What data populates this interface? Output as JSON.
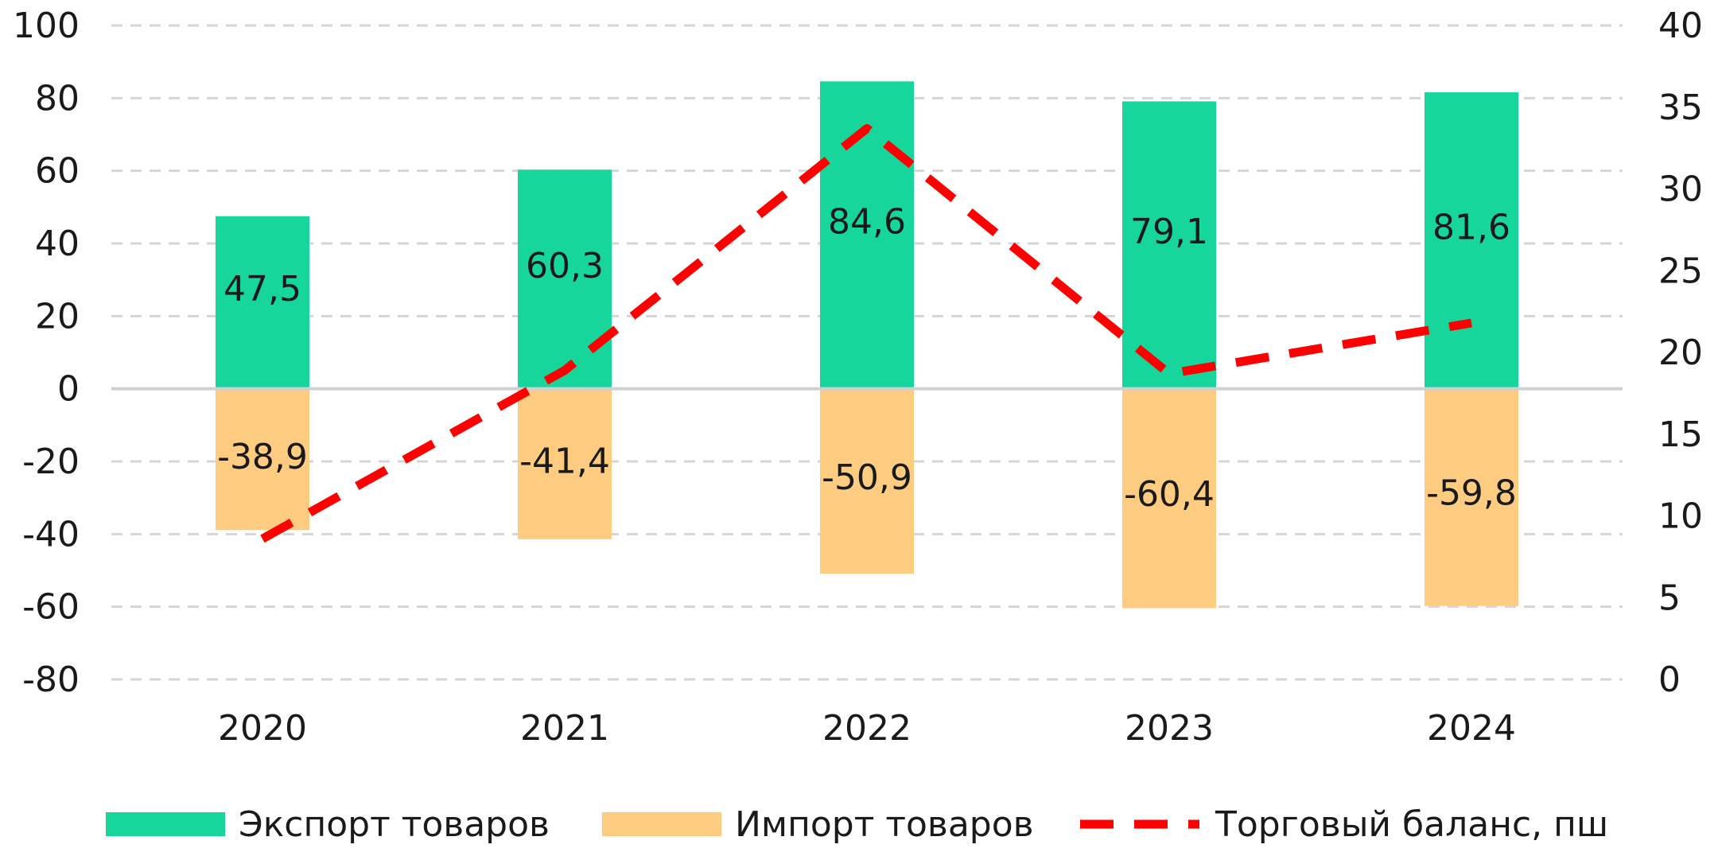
{
  "chart_data": {
    "type": "bar",
    "categories": [
      "2020",
      "2021",
      "2022",
      "2023",
      "2024"
    ],
    "series": [
      {
        "name": "Экспорт товаров",
        "kind": "bar",
        "axis": "left",
        "color": "#17d69c",
        "values": [
          47.5,
          60.3,
          84.6,
          79.1,
          81.6
        ],
        "labels": [
          "47,5",
          "60,3",
          "84,6",
          "79,1",
          "81,6"
        ]
      },
      {
        "name": "Импорт товаров",
        "kind": "bar",
        "axis": "left",
        "color": "#fdcc80",
        "values": [
          -38.9,
          -41.4,
          -50.9,
          -60.4,
          -59.8
        ],
        "labels": [
          "-38,9",
          "-41,4",
          "-50,9",
          "-60,4",
          "-59,8"
        ]
      },
      {
        "name": "Торговый баланс, пш",
        "kind": "line",
        "style": "dashed",
        "axis": "right",
        "color": "#ff0000",
        "values": [
          8.6,
          18.9,
          33.7,
          18.7,
          21.8
        ]
      }
    ],
    "y_left": {
      "lim": [
        -80,
        100
      ],
      "ticks": [
        "100",
        "80",
        "60",
        "40",
        "20",
        "0",
        "-20",
        "-40",
        "-60",
        "-80"
      ]
    },
    "y_right": {
      "lim": [
        0,
        40
      ],
      "ticks": [
        "40",
        "35",
        "30",
        "25",
        "20",
        "15",
        "10",
        "5",
        "0"
      ]
    },
    "grid": "dashed horizontal",
    "legend_position": "bottom"
  }
}
